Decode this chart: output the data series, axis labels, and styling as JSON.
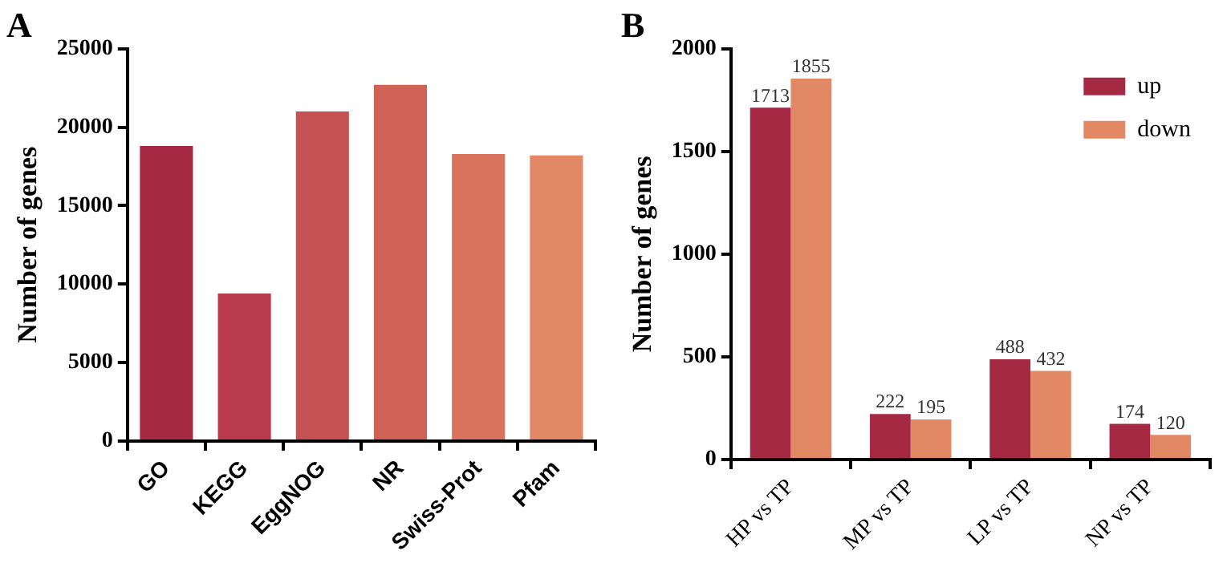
{
  "chart_data": [
    {
      "type": "bar",
      "title": "A",
      "ylabel": "Number of genes",
      "categories": [
        "GO",
        "KEGG",
        "EggNOG",
        "NR",
        "Swiss-Prot",
        "Pfam"
      ],
      "values": [
        18800,
        9400,
        21000,
        22700,
        18300,
        18200
      ],
      "colors": [
        "#a62944",
        "#b83a4b",
        "#c55153",
        "#cf6155",
        "#da735d",
        "#e38864"
      ],
      "ylim": [
        0,
        25000
      ],
      "yticks": [
        0,
        5000,
        10000,
        15000,
        20000,
        25000
      ],
      "grid": false,
      "legend": false
    },
    {
      "type": "bar",
      "title": "B",
      "ylabel": "Number of genes",
      "categories": [
        "HP vs TP",
        "MP vs TP",
        "LP vs TP",
        "NP vs TP"
      ],
      "series": [
        {
          "name": "up",
          "color": "#a62944",
          "values": [
            1713,
            222,
            488,
            174
          ]
        },
        {
          "name": "down",
          "color": "#e38864",
          "values": [
            1855,
            195,
            432,
            120
          ]
        }
      ],
      "ylim": [
        0,
        2000
      ],
      "yticks": [
        0,
        500,
        1000,
        1500,
        2000
      ],
      "grid": false,
      "legend": "top right",
      "data_labels": true
    }
  ]
}
